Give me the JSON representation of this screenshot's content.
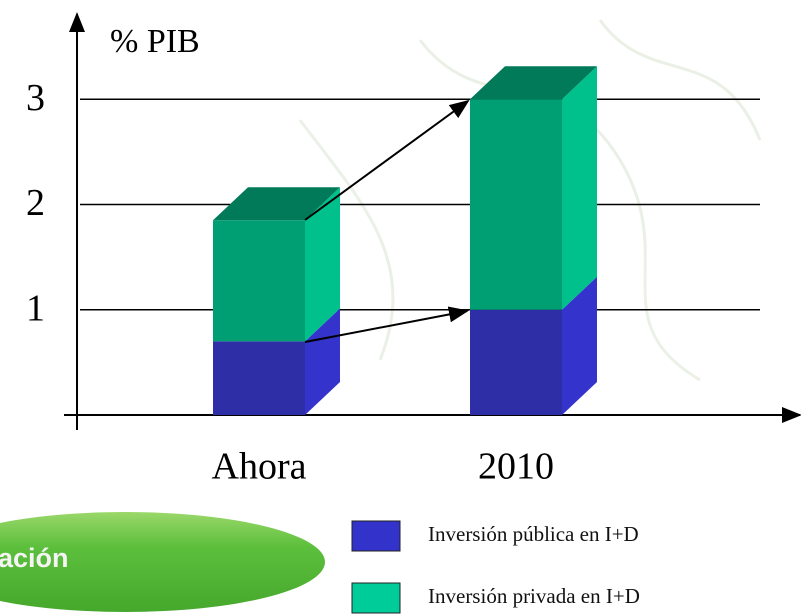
{
  "chart_data": {
    "type": "stacked_bar_3d",
    "ylabel": "% PIB",
    "categories": [
      "Ahora",
      "2010"
    ],
    "series": [
      {
        "name": "Inversión pública en I+D",
        "color": "#2e2ea6",
        "side_color": "#3434cc",
        "legend_color": "#3333cc",
        "values": [
          0.7,
          1.0
        ]
      },
      {
        "name": "Inversión privada en I+D",
        "color": "#009e73",
        "side_color": "#00c08c",
        "legend_color": "#00cc99",
        "values": [
          1.15,
          2.0
        ]
      }
    ],
    "top_color": "#007a58",
    "ylim": [
      0,
      3.8
    ],
    "yticks": [
      1,
      2,
      3
    ],
    "grid": true,
    "badge": "ación"
  }
}
